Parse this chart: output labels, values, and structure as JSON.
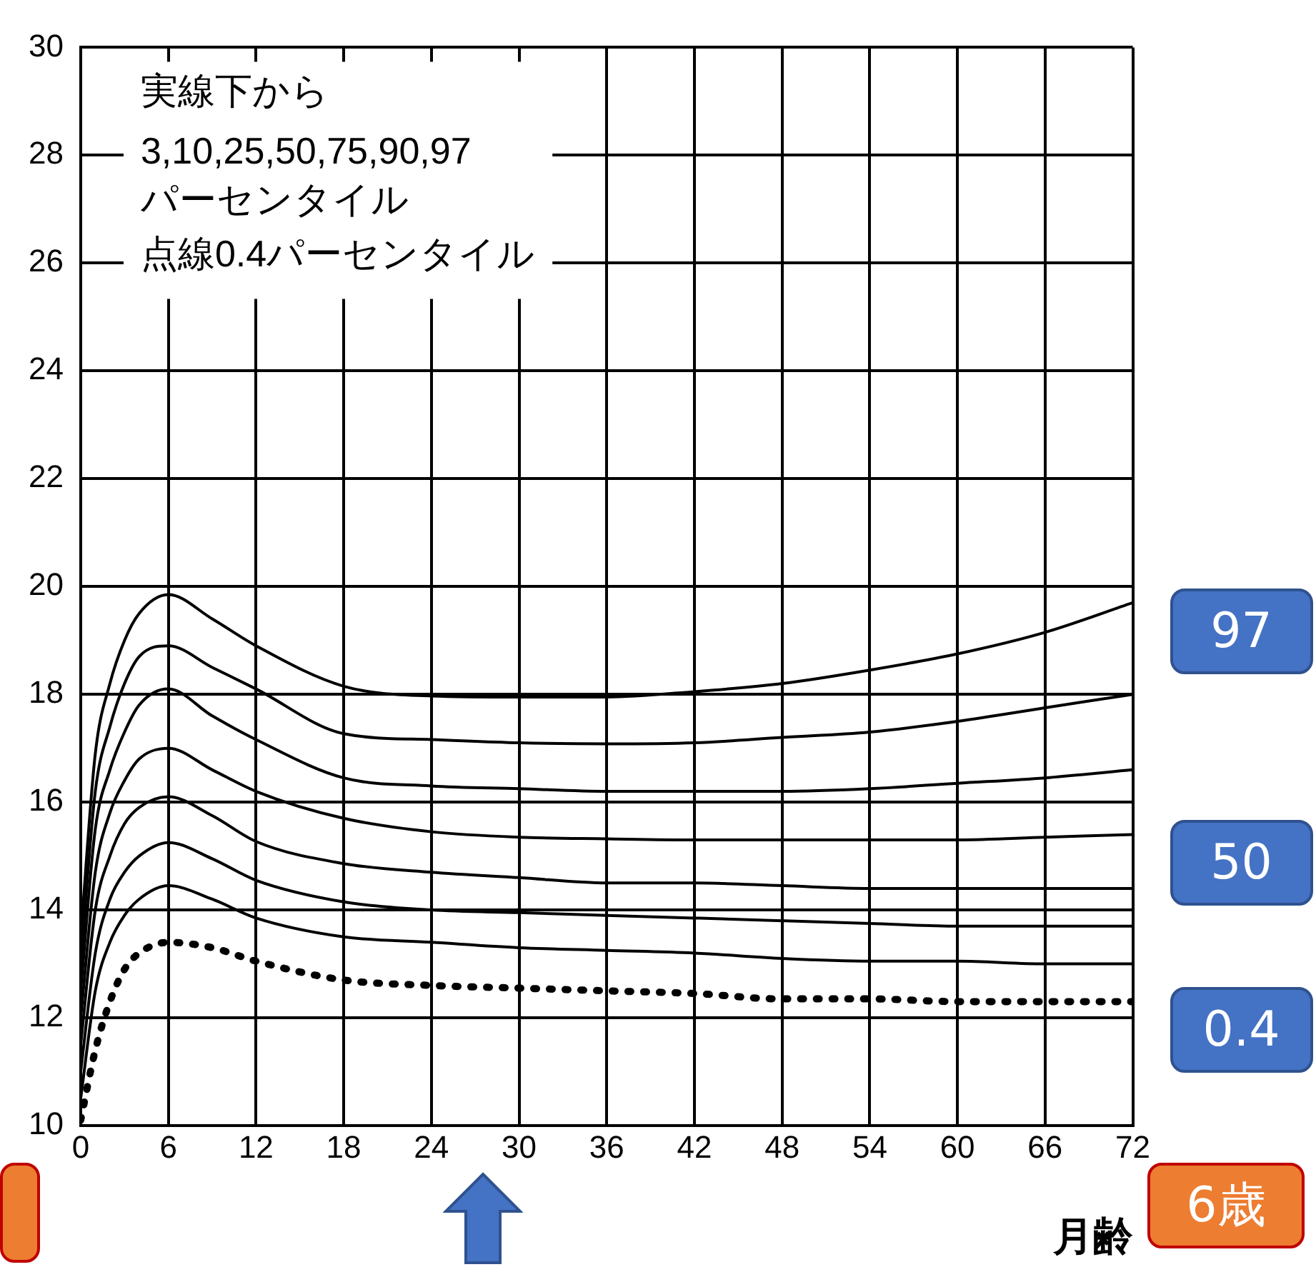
{
  "chart_data": {
    "type": "line",
    "xlabel": "月齢",
    "x": [
      0,
      1,
      2,
      3,
      4,
      6,
      9,
      12,
      18,
      24,
      30,
      36,
      42,
      48,
      54,
      60,
      66,
      72
    ],
    "series": [
      {
        "color": "#000000",
        "line_style": "dotted",
        "name": "0.4",
        "values": [
          10.1,
          11.4,
          12.3,
          12.9,
          13.2,
          13.4,
          13.3,
          13.05,
          12.7,
          12.6,
          12.55,
          12.5,
          12.45,
          12.35,
          12.35,
          12.3,
          12.3,
          12.3
        ]
      },
      {
        "color": "#000000",
        "values": [
          10.5,
          12.5,
          13.4,
          13.9,
          14.2,
          14.45,
          14.2,
          13.85,
          13.5,
          13.4,
          13.3,
          13.25,
          13.2,
          13.1,
          13.05,
          13.05,
          13.0,
          13.0
        ]
      },
      {
        "color": "#000000",
        "values": [
          11.0,
          13.2,
          14.2,
          14.7,
          15.0,
          15.25,
          14.95,
          14.55,
          14.15,
          14.0,
          13.95,
          13.9,
          13.85,
          13.8,
          13.75,
          13.7,
          13.7,
          13.7
        ]
      },
      {
        "color": "#000000",
        "values": [
          11.5,
          14.0,
          15.0,
          15.6,
          15.9,
          16.1,
          15.75,
          15.27,
          14.86,
          14.7,
          14.6,
          14.5,
          14.5,
          14.45,
          14.4,
          14.4,
          14.4,
          14.4
        ]
      },
      {
        "color": "#000000",
        "name": "50",
        "values": [
          12.0,
          14.7,
          15.8,
          16.4,
          16.8,
          17.0,
          16.6,
          16.2,
          15.7,
          15.45,
          15.35,
          15.32,
          15.3,
          15.3,
          15.3,
          15.3,
          15.35,
          15.4
        ]
      },
      {
        "color": "#000000",
        "values": [
          12.5,
          15.5,
          16.6,
          17.3,
          17.8,
          18.1,
          17.6,
          17.16,
          16.45,
          16.3,
          16.25,
          16.2,
          16.2,
          16.2,
          16.25,
          16.35,
          16.45,
          16.6
        ]
      },
      {
        "color": "#000000",
        "values": [
          13.0,
          16.2,
          17.4,
          18.2,
          18.7,
          18.9,
          18.5,
          18.1,
          17.27,
          17.16,
          17.1,
          17.08,
          17.1,
          17.2,
          17.3,
          17.5,
          17.75,
          18.0
        ]
      },
      {
        "color": "#000000",
        "name": "97",
        "values": [
          13.5,
          16.9,
          18.2,
          19.0,
          19.5,
          19.85,
          19.4,
          18.9,
          18.15,
          17.97,
          17.95,
          17.95,
          18.05,
          18.2,
          18.45,
          18.75,
          19.15,
          19.7
        ]
      }
    ],
    "xlim": [
      0,
      72
    ],
    "xticks": [
      0,
      6,
      12,
      18,
      24,
      30,
      36,
      42,
      48,
      54,
      60,
      66,
      72
    ],
    "ylim": [
      10,
      30
    ],
    "yticks": [
      10,
      12,
      14,
      16,
      18,
      20,
      22,
      24,
      26,
      28,
      30
    ],
    "grid": true,
    "legend": false,
    "marker": "none",
    "line_style": "solid",
    "annotations": [
      "実線下から",
      "3,10,25,50,75,90,97",
      "パーセンタイル",
      "点線0.4パーセンタイル",
      "6歳"
    ]
  }
}
